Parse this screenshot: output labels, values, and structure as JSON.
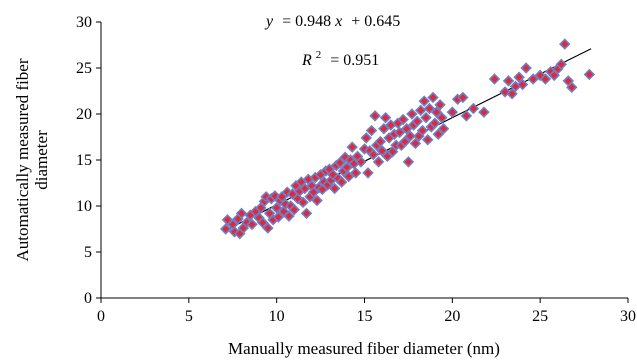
{
  "chart_data": {
    "type": "scatter",
    "title": "",
    "xlabel": "Manually measured fiber diameter (nm)",
    "ylabel_line1": "Automatically measured fiber",
    "ylabel_line2": "diameter",
    "xlim": [
      0,
      30
    ],
    "ylim": [
      0,
      30
    ],
    "xticks": [
      "0",
      "5",
      "10",
      "15",
      "20",
      "25",
      "30"
    ],
    "yticks": [
      "0",
      "5",
      "10",
      "15",
      "20",
      "25",
      "30"
    ],
    "grid": false,
    "legend": "none",
    "marker": {
      "shape": "diamond",
      "fill": "#e0283a",
      "edge": "#6e7fc4"
    },
    "trendline": {
      "slope": 0.948,
      "intercept": 0.645,
      "x_range": [
        7,
        27.9
      ],
      "color": "#000000"
    },
    "equation": {
      "y": "y",
      "eq": "= 0.948",
      "x": "x",
      "rest": "+ 0.645"
    },
    "r_squared": {
      "r": "R",
      "sup": "2",
      "val": "= 0.951"
    },
    "points": [
      [
        7.1,
        7.5
      ],
      [
        7.2,
        8.5
      ],
      [
        7.5,
        8.0
      ],
      [
        7.6,
        7.2
      ],
      [
        7.8,
        8.6
      ],
      [
        7.9,
        7.0
      ],
      [
        8.0,
        9.2
      ],
      [
        8.1,
        7.6
      ],
      [
        8.3,
        8.2
      ],
      [
        8.5,
        9.0
      ],
      [
        8.6,
        8.0
      ],
      [
        8.8,
        9.4
      ],
      [
        9.0,
        8.7
      ],
      [
        9.1,
        9.8
      ],
      [
        9.2,
        8.2
      ],
      [
        9.3,
        10.5
      ],
      [
        9.4,
        11.0
      ],
      [
        9.5,
        7.6
      ],
      [
        9.6,
        9.2
      ],
      [
        9.7,
        10.8
      ],
      [
        9.8,
        8.5
      ],
      [
        9.9,
        11.1
      ],
      [
        10.0,
        9.8
      ],
      [
        10.1,
        8.8
      ],
      [
        10.2,
        10.6
      ],
      [
        10.3,
        11.0
      ],
      [
        10.4,
        9.4
      ],
      [
        10.5,
        10.2
      ],
      [
        10.6,
        11.5
      ],
      [
        10.7,
        8.9
      ],
      [
        10.8,
        10.0
      ],
      [
        10.9,
        11.3
      ],
      [
        11.0,
        9.6
      ],
      [
        11.1,
        12.2
      ],
      [
        11.2,
        10.8
      ],
      [
        11.3,
        11.6
      ],
      [
        11.4,
        12.6
      ],
      [
        11.5,
        10.4
      ],
      [
        11.6,
        11.9
      ],
      [
        11.7,
        9.2
      ],
      [
        11.8,
        12.9
      ],
      [
        11.9,
        11.0
      ],
      [
        12.0,
        12.2
      ],
      [
        12.1,
        11.5
      ],
      [
        12.2,
        13.1
      ],
      [
        12.3,
        10.6
      ],
      [
        12.4,
        12.0
      ],
      [
        12.5,
        13.4
      ],
      [
        12.6,
        11.8
      ],
      [
        12.7,
        12.6
      ],
      [
        12.8,
        13.8
      ],
      [
        12.9,
        12.3
      ],
      [
        13.0,
        14.0
      ],
      [
        13.1,
        12.8
      ],
      [
        13.2,
        13.4
      ],
      [
        13.3,
        11.9
      ],
      [
        13.4,
        14.4
      ],
      [
        13.5,
        13.0
      ],
      [
        13.6,
        14.7
      ],
      [
        13.7,
        12.6
      ],
      [
        13.8,
        13.8
      ],
      [
        13.9,
        15.3
      ],
      [
        14.0,
        14.2
      ],
      [
        14.1,
        13.2
      ],
      [
        14.2,
        15.0
      ],
      [
        14.3,
        16.4
      ],
      [
        14.4,
        14.6
      ],
      [
        14.5,
        13.6
      ],
      [
        14.6,
        15.4
      ],
      [
        14.8,
        14.8
      ],
      [
        15.0,
        16.2
      ],
      [
        15.1,
        17.4
      ],
      [
        15.2,
        13.6
      ],
      [
        15.3,
        16.0
      ],
      [
        15.4,
        18.2
      ],
      [
        15.5,
        15.6
      ],
      [
        15.6,
        19.8
      ],
      [
        15.7,
        16.6
      ],
      [
        15.8,
        14.8
      ],
      [
        15.9,
        17.0
      ],
      [
        16.0,
        16.0
      ],
      [
        16.1,
        18.4
      ],
      [
        16.2,
        19.6
      ],
      [
        16.3,
        15.4
      ],
      [
        16.4,
        17.4
      ],
      [
        16.5,
        18.8
      ],
      [
        16.6,
        15.9
      ],
      [
        16.7,
        17.8
      ],
      [
        16.8,
        16.6
      ],
      [
        16.9,
        19.0
      ],
      [
        17.0,
        18.0
      ],
      [
        17.1,
        16.6
      ],
      [
        17.2,
        19.4
      ],
      [
        17.3,
        17.0
      ],
      [
        17.4,
        18.4
      ],
      [
        17.5,
        14.8
      ],
      [
        17.6,
        17.6
      ],
      [
        17.7,
        20.0
      ],
      [
        17.8,
        18.8
      ],
      [
        17.9,
        16.8
      ],
      [
        18.0,
        19.2
      ],
      [
        18.1,
        17.6
      ],
      [
        18.2,
        20.4
      ],
      [
        18.3,
        18.2
      ],
      [
        18.4,
        21.4
      ],
      [
        18.5,
        19.6
      ],
      [
        18.6,
        17.2
      ],
      [
        18.7,
        20.6
      ],
      [
        18.8,
        18.6
      ],
      [
        18.9,
        21.8
      ],
      [
        19.0,
        19.0
      ],
      [
        19.1,
        20.2
      ],
      [
        19.2,
        17.8
      ],
      [
        19.3,
        21.0
      ],
      [
        19.4,
        19.6
      ],
      [
        19.5,
        18.4
      ],
      [
        20.0,
        20.2
      ],
      [
        20.3,
        21.6
      ],
      [
        20.6,
        21.8
      ],
      [
        20.8,
        19.8
      ],
      [
        21.2,
        20.6
      ],
      [
        21.8,
        20.2
      ],
      [
        22.4,
        23.8
      ],
      [
        23.0,
        22.4
      ],
      [
        23.2,
        23.6
      ],
      [
        23.4,
        22.2
      ],
      [
        23.6,
        23.0
      ],
      [
        23.8,
        24.0
      ],
      [
        24.0,
        23.2
      ],
      [
        24.2,
        25.0
      ],
      [
        24.6,
        23.8
      ],
      [
        25.0,
        24.2
      ],
      [
        25.3,
        23.8
      ],
      [
        25.6,
        24.6
      ],
      [
        25.8,
        24.2
      ],
      [
        26.0,
        24.9
      ],
      [
        26.2,
        25.4
      ],
      [
        26.4,
        27.6
      ],
      [
        26.6,
        23.6
      ],
      [
        26.8,
        22.9
      ],
      [
        27.8,
        24.3
      ]
    ]
  }
}
